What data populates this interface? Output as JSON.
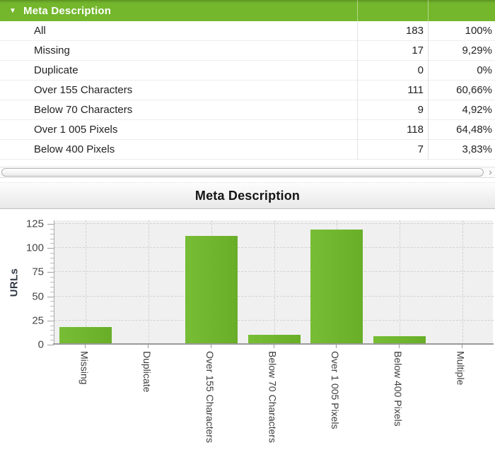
{
  "colors": {
    "header-green": "#74b72c",
    "bar-light": "#77bd35",
    "bar-dark": "#68ae27",
    "plot-bg": "#f0f0f0"
  },
  "table_panel": {
    "header": {
      "title": "Meta Description",
      "collapse_icon": "▼"
    },
    "rows": [
      {
        "label": "All",
        "count": "183",
        "percent": "100%"
      },
      {
        "label": "Missing",
        "count": "17",
        "percent": "9,29%"
      },
      {
        "label": "Duplicate",
        "count": "0",
        "percent": "0%"
      },
      {
        "label": "Over 155 Characters",
        "count": "111",
        "percent": "60,66%"
      },
      {
        "label": "Below 70 Characters",
        "count": "9",
        "percent": "4,92%"
      },
      {
        "label": "Over 1 005 Pixels",
        "count": "118",
        "percent": "64,48%"
      },
      {
        "label": "Below 400 Pixels",
        "count": "7",
        "percent": "3,83%"
      }
    ],
    "scrollbar": {
      "right_arrow": "›"
    }
  },
  "chart": {
    "title": "Meta Description"
  },
  "chart_data": {
    "type": "bar",
    "title": "Meta Description",
    "categories": [
      "Missing",
      "Duplicate",
      "Over 155 Characters",
      "Below 70 Characters",
      "Over 1 005 Pixels",
      "Below 400 Pixels",
      "Multiple"
    ],
    "values": [
      17,
      0,
      111,
      9,
      118,
      7,
      0
    ],
    "xlabel": "",
    "ylabel": "URLs",
    "ylim": [
      0,
      125
    ],
    "ytick_step": 25,
    "yminor_step": 5,
    "grid": true,
    "legend": false
  }
}
